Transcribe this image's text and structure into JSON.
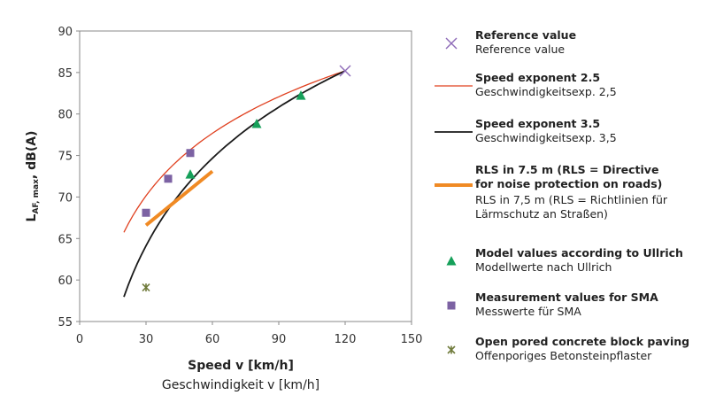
{
  "chart_data": {
    "type": "scatter",
    "title": "",
    "xlabel": "Speed v [km/h]",
    "xlabel_de": "Geschwindigkeit v [km/h]",
    "ylabel": {
      "main": "L",
      "sub": "AF, max",
      "suffix": ", dB(A)"
    },
    "xlim": [
      0,
      150
    ],
    "ylim": [
      55,
      90
    ],
    "xticks": [
      0,
      30,
      60,
      90,
      120,
      150
    ],
    "yticks": [
      55,
      60,
      65,
      70,
      75,
      80,
      85,
      90
    ],
    "grid": false,
    "legend_position": "right",
    "series": [
      {
        "key": "reference",
        "name": "Reference value",
        "name_de": "Reference value",
        "kind": "marker",
        "marker": "x",
        "color": "#8e6bb8",
        "points": [
          {
            "x": 120,
            "y": 85.2
          }
        ]
      },
      {
        "key": "exp25",
        "name": "Speed exponent 2.5",
        "name_de": "Geschwindigkeitsexp. 2,5",
        "kind": "curve",
        "color": "#e0401f",
        "width": 1.3,
        "formula": "y = y_ref + 25*log10(v/120)",
        "y_ref": 85.2,
        "x_range": [
          20,
          120
        ]
      },
      {
        "key": "exp35",
        "name": "Speed exponent 3.5",
        "name_de": "Geschwindigkeitsexp. 3,5",
        "kind": "curve",
        "color": "#1a1a1a",
        "width": 1.8,
        "formula": "y = y_ref + 35*log10(v/120)",
        "y_ref": 85.2,
        "x_range": [
          20,
          120
        ]
      },
      {
        "key": "rls",
        "name": "RLS in 7.5 m (RLS = Directive for noise protection on roads)",
        "name_de": "RLS in 7,5 m (RLS = Richtlinien für Lärmschutz an Straßen)",
        "kind": "line",
        "color": "#f08a24",
        "width": 4,
        "points": [
          {
            "x": 30,
            "y": 66.6
          },
          {
            "x": 60,
            "y": 73.1
          }
        ]
      },
      {
        "key": "ullrich",
        "name": "Model values according to Ullrich",
        "name_de": "Modellwerte nach Ullrich",
        "kind": "marker",
        "marker": "triangle",
        "color": "#16a05a",
        "points": [
          {
            "x": 50,
            "y": 72.7
          },
          {
            "x": 80,
            "y": 78.8
          },
          {
            "x": 100,
            "y": 82.2
          }
        ]
      },
      {
        "key": "sma",
        "name": "Measurement values for SMA",
        "name_de": "Messwerte für SMA",
        "kind": "marker",
        "marker": "square",
        "color": "#7c62a3",
        "points": [
          {
            "x": 30,
            "y": 68.1
          },
          {
            "x": 40,
            "y": 72.2
          },
          {
            "x": 50,
            "y": 75.3
          }
        ]
      },
      {
        "key": "paving",
        "name": "Open pored concrete block paving",
        "name_de": "Offenporiges Betonsteinpflaster",
        "kind": "marker",
        "marker": "star",
        "color": "#6f7a3a",
        "points": [
          {
            "x": 30,
            "y": 59.1
          }
        ]
      }
    ]
  }
}
